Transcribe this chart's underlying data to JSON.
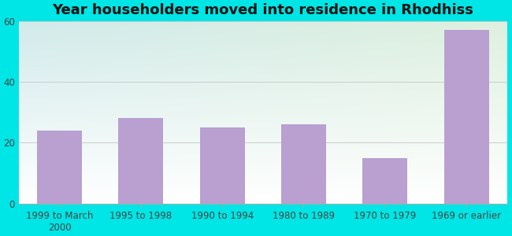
{
  "categories": [
    "1999 to March\n2000",
    "1995 to 1998",
    "1990 to 1994",
    "1980 to 1989",
    "1970 to 1979",
    "1969 or earlier"
  ],
  "values": [
    24,
    28,
    25,
    26,
    15,
    57
  ],
  "bar_color": "#b9a0d0",
  "title": "Year householders moved into residence in Rhodhiss",
  "title_fontsize": 13,
  "ylim": [
    0,
    60
  ],
  "yticks": [
    0,
    20,
    40,
    60
  ],
  "outer_bg": "#00e5e5",
  "tick_label_fontsize": 8.5,
  "grid_color": "#cccccc",
  "title_color": "#111111"
}
